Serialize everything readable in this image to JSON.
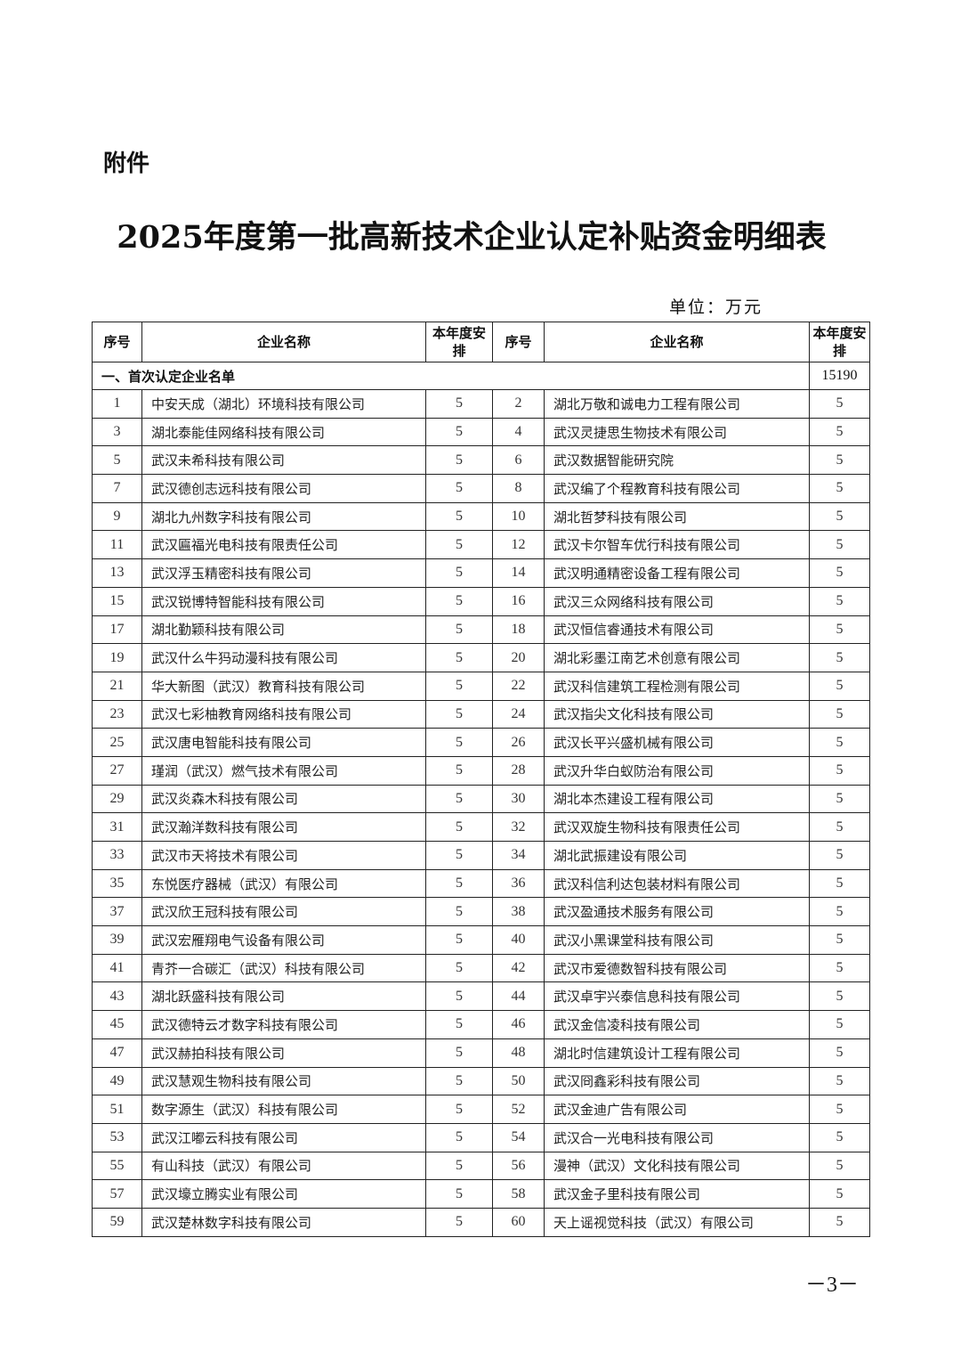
{
  "attachment_label": "附件",
  "title": "2025年度第一批高新技术企业认定补贴资金明细表",
  "unit": "单位：万元",
  "table": {
    "headers": {
      "seq": "序号",
      "name": "企业名称",
      "amount": "本年度安排"
    },
    "section": {
      "label": "一、首次认定企业名单",
      "total": "15190"
    },
    "rows": [
      [
        [
          "1",
          "中安天成（湖北）环境科技有限公司",
          "5"
        ],
        [
          "2",
          "湖北万敬和诚电力工程有限公司",
          "5"
        ]
      ],
      [
        [
          "3",
          "湖北泰能佳网络科技有限公司",
          "5"
        ],
        [
          "4",
          "武汉灵捷思生物技术有限公司",
          "5"
        ]
      ],
      [
        [
          "5",
          "武汉未希科技有限公司",
          "5"
        ],
        [
          "6",
          "武汉数据智能研究院",
          "5"
        ]
      ],
      [
        [
          "7",
          "武汉德创志远科技有限公司",
          "5"
        ],
        [
          "8",
          "武汉编了个程教育科技有限公司",
          "5"
        ]
      ],
      [
        [
          "9",
          "湖北九州数字科技有限公司",
          "5"
        ],
        [
          "10",
          "湖北哲梦科技有限公司",
          "5"
        ]
      ],
      [
        [
          "11",
          "武汉匾福光电科技有限责任公司",
          "5"
        ],
        [
          "12",
          "武汉卡尔智车优行科技有限公司",
          "5"
        ]
      ],
      [
        [
          "13",
          "武汉浮玉精密科技有限公司",
          "5"
        ],
        [
          "14",
          "武汉明通精密设备工程有限公司",
          "5"
        ]
      ],
      [
        [
          "15",
          "武汉锐博特智能科技有限公司",
          "5"
        ],
        [
          "16",
          "武汉三众网络科技有限公司",
          "5"
        ]
      ],
      [
        [
          "17",
          "湖北勤颖科技有限公司",
          "5"
        ],
        [
          "18",
          "武汉恒信睿通技术有限公司",
          "5"
        ]
      ],
      [
        [
          "19",
          "武汉什么牛犸动漫科技有限公司",
          "5"
        ],
        [
          "20",
          "湖北彩墨江南艺术创意有限公司",
          "5"
        ]
      ],
      [
        [
          "21",
          "华大新图（武汉）教育科技有限公司",
          "5"
        ],
        [
          "22",
          "武汉科信建筑工程检测有限公司",
          "5"
        ]
      ],
      [
        [
          "23",
          "武汉七彩柚教育网络科技有限公司",
          "5"
        ],
        [
          "24",
          "武汉指尖文化科技有限公司",
          "5"
        ]
      ],
      [
        [
          "25",
          "武汉唐电智能科技有限公司",
          "5"
        ],
        [
          "26",
          "武汉长平兴盛机械有限公司",
          "5"
        ]
      ],
      [
        [
          "27",
          "瑾润（武汉）燃气技术有限公司",
          "5"
        ],
        [
          "28",
          "武汉升华白蚁防治有限公司",
          "5"
        ]
      ],
      [
        [
          "29",
          "武汉炎森木科技有限公司",
          "5"
        ],
        [
          "30",
          "湖北本杰建设工程有限公司",
          "5"
        ]
      ],
      [
        [
          "31",
          "武汉瀚洋数科技有限公司",
          "5"
        ],
        [
          "32",
          "武汉双旋生物科技有限责任公司",
          "5"
        ]
      ],
      [
        [
          "33",
          "武汉市天将技术有限公司",
          "5"
        ],
        [
          "34",
          "湖北武振建设有限公司",
          "5"
        ]
      ],
      [
        [
          "35",
          "东悦医疗器械（武汉）有限公司",
          "5"
        ],
        [
          "36",
          "武汉科信利达包装材料有限公司",
          "5"
        ]
      ],
      [
        [
          "37",
          "武汉欣王冠科技有限公司",
          "5"
        ],
        [
          "38",
          "武汉盈通技术服务有限公司",
          "5"
        ]
      ],
      [
        [
          "39",
          "武汉宏雁翔电气设备有限公司",
          "5"
        ],
        [
          "40",
          "武汉小黑课堂科技有限公司",
          "5"
        ]
      ],
      [
        [
          "41",
          "青芥一合碳汇（武汉）科技有限公司",
          "5"
        ],
        [
          "42",
          "武汉市爱德数智科技有限公司",
          "5"
        ]
      ],
      [
        [
          "43",
          "湖北跃盛科技有限公司",
          "5"
        ],
        [
          "44",
          "武汉卓宇兴泰信息科技有限公司",
          "5"
        ]
      ],
      [
        [
          "45",
          "武汉德特云才数字科技有限公司",
          "5"
        ],
        [
          "46",
          "武汉金信凌科技有限公司",
          "5"
        ]
      ],
      [
        [
          "47",
          "武汉赫拍科技有限公司",
          "5"
        ],
        [
          "48",
          "湖北时信建筑设计工程有限公司",
          "5"
        ]
      ],
      [
        [
          "49",
          "武汉慧观生物科技有限公司",
          "5"
        ],
        [
          "50",
          "武汉冏鑫彩科技有限公司",
          "5"
        ]
      ],
      [
        [
          "51",
          "数字源生（武汉）科技有限公司",
          "5"
        ],
        [
          "52",
          "武汉金迪广告有限公司",
          "5"
        ]
      ],
      [
        [
          "53",
          "武汉江嘟云科技有限公司",
          "5"
        ],
        [
          "54",
          "武汉合一光电科技有限公司",
          "5"
        ]
      ],
      [
        [
          "55",
          "有山科技（武汉）有限公司",
          "5"
        ],
        [
          "56",
          "漫神（武汉）文化科技有限公司",
          "5"
        ]
      ],
      [
        [
          "57",
          "武汉壕立腾实业有限公司",
          "5"
        ],
        [
          "58",
          "武汉金子里科技有限公司",
          "5"
        ]
      ],
      [
        [
          "59",
          "武汉楚林数字科技有限公司",
          "5"
        ],
        [
          "60",
          "天上谣视觉科技（武汉）有限公司",
          "5"
        ]
      ]
    ]
  },
  "page_number": "－3－"
}
